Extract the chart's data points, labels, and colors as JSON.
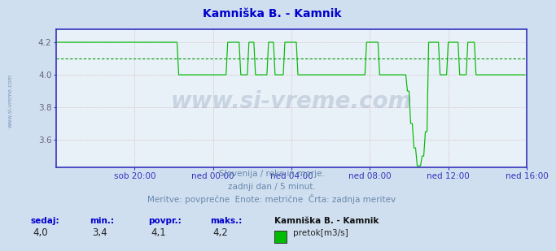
{
  "title": "Kamniška B. - Kamnik",
  "title_color": "#0000cc",
  "bg_color": "#d0dff0",
  "plot_bg_color": "#e8f0f8",
  "line_color": "#00bb00",
  "avg_line_color": "#009900",
  "axis_color": "#3333bb",
  "grid_color_v": "#cc9999",
  "grid_color_h": "#cc9999",
  "x_label_color": "#666677",
  "y_label_color": "#666677",
  "ylim": [
    3.43,
    4.28
  ],
  "yticks": [
    3.6,
    3.8,
    4.0,
    4.2
  ],
  "x_tick_labels": [
    "sob 20:00",
    "ned 00:00",
    "ned 04:00",
    "ned 08:00",
    "ned 12:00",
    "ned 16:00"
  ],
  "footer_line1": "Slovenija / reke in morje.",
  "footer_line2": "zadnji dan / 5 minut.",
  "footer_line3": "Meritve: povprečne  Enote: metrične  Črta: zadnja meritev",
  "footer_color": "#6688aa",
  "legend_title": "Kamniška B. - Kamnik",
  "legend_label": "pretok[m3/s]",
  "legend_color": "#00bb00",
  "stat_labels": [
    "sedaj:",
    "min.:",
    "povpr.:",
    "maks.:"
  ],
  "stat_values": [
    "4,0",
    "3,4",
    "4,1",
    "4,2"
  ],
  "stat_color": "#0000cc",
  "watermark": "www.si-vreme.com",
  "watermark_color": "#1a3a6a",
  "sidebar_text": "www.si-vreme.com",
  "sidebar_color": "#7799bb",
  "avg_value": 4.1,
  "n_points": 288
}
